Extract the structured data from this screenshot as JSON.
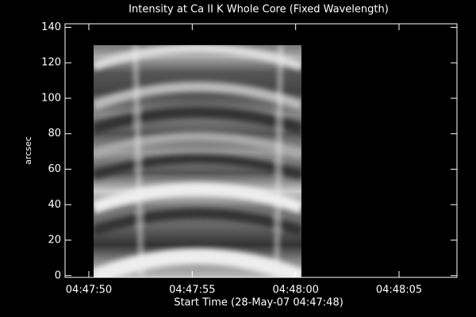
{
  "chart_data": {
    "type": "image",
    "title": "Intensity at Ca II K Whole Core (Fixed Wavelength)",
    "xlabel": "Start Time (28-May-07 04:47:48)",
    "ylabel": "arcsec",
    "xlim": [
      0.85,
      19.8
    ],
    "ylim": [
      -1,
      142
    ],
    "xticks": [
      {
        "value": 2,
        "label": "04:47:50"
      },
      {
        "value": 7,
        "label": "04:47:55"
      },
      {
        "value": 12,
        "label": "04:48:00"
      },
      {
        "value": 17,
        "label": "04:48:05"
      }
    ],
    "yticks": [
      0,
      20,
      40,
      60,
      80,
      100,
      120,
      140
    ],
    "extent": {
      "x": [
        2.23,
        12.28
      ],
      "y": [
        -1,
        130
      ]
    }
  }
}
